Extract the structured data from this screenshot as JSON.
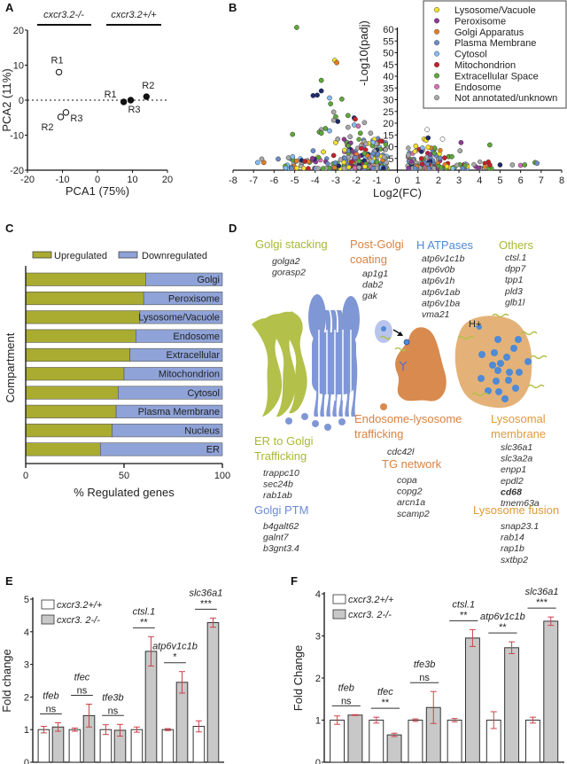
{
  "panels": {
    "A": "A",
    "B": "B",
    "C": "C",
    "D": "D",
    "E": "E",
    "F": "F"
  },
  "colors": {
    "lysosome": "#f2e12a",
    "peroxisome": "#8e3a95",
    "golgi": "#e47f22",
    "plasma_membrane": "#6a8cc8",
    "cytosol": "#86bdef",
    "mitochondrion": "#c8202a",
    "extracellular": "#5fa83a",
    "endosome": "#d56fb1",
    "unknown": "#a8a8a8",
    "upregulated": "#a9ac30",
    "downregulated": "#8fa3d8",
    "golgi_green": "#b3c04a",
    "golgi_blue": "#8097d6",
    "endosome_orange": "#d98a4e",
    "lysosome_tan": "#e4b278",
    "errorbar": "#d0404a",
    "bar_ko": "#c8c8c8"
  },
  "chart_data": [
    {
      "id": "A",
      "type": "scatter",
      "title": "",
      "xlabel": "PCA1 (75%)",
      "ylabel": "PCA2 (11%)",
      "xlim": [
        -20,
        20
      ],
      "ylim": [
        -20,
        20
      ],
      "xticks": [
        "-20",
        "-10",
        "0",
        "10",
        "20"
      ],
      "yticks": [
        "20",
        "10",
        "0",
        "-10",
        "-20"
      ],
      "group_labels": [
        "cxcr3.2-/-",
        "cxcr3.2+/+"
      ],
      "series": [
        {
          "name": "cxcr3.2-/-",
          "filled": false,
          "points": [
            {
              "label": "R1",
              "x": -11,
              "y": 8
            },
            {
              "label": "R2",
              "x": -10.5,
              "y": -4.8
            },
            {
              "label": "R3",
              "x": -9,
              "y": -3.5
            }
          ]
        },
        {
          "name": "cxcr3.2+/+",
          "filled": true,
          "points": [
            {
              "label": "R1",
              "x": 7.5,
              "y": -0.5
            },
            {
              "label": "R3",
              "x": 9.5,
              "y": 0
            },
            {
              "label": "R2",
              "x": 14,
              "y": 1
            }
          ]
        }
      ]
    },
    {
      "id": "B",
      "type": "scatter",
      "title": "",
      "xlabel": "Log2(FC)",
      "ylabel": "-Log10(padj)",
      "xlim": [
        -8,
        8
      ],
      "ylim": [
        0,
        60
      ],
      "xticks": [
        "-8",
        "-7",
        "-6",
        "-5",
        "-4",
        "-3",
        "-2",
        "-1",
        "0",
        "1",
        "2",
        "3",
        "4",
        "5",
        "6",
        "7",
        "8"
      ],
      "yticks": [
        "60",
        "55",
        "50",
        "45",
        "40",
        "35",
        "30",
        "25",
        "20",
        "15",
        "10",
        "5"
      ],
      "legend": [
        {
          "name": "Lysosome/Vacuole",
          "key": "lysosome"
        },
        {
          "name": "Peroxisome",
          "key": "peroxisome"
        },
        {
          "name": "Golgi Apparatus",
          "key": "golgi"
        },
        {
          "name": "Plasma Membrane",
          "key": "plasma_membrane"
        },
        {
          "name": "Cytosol",
          "key": "cytosol"
        },
        {
          "name": "Mitochondrion",
          "key": "mitochondrion"
        },
        {
          "name": "Extracellular Space",
          "key": "extracellular"
        },
        {
          "name": "Endosome",
          "key": "endosome"
        },
        {
          "name": "Not annotated/unknown",
          "key": "unknown"
        }
      ],
      "legend_position": "top-right",
      "highlight_points": [
        {
          "x": -4.9,
          "y": 60,
          "c": "extracellular"
        },
        {
          "x": -3.05,
          "y": 46,
          "c": "lysosome"
        },
        {
          "x": -2.95,
          "y": 45,
          "c": "golgi"
        },
        {
          "x": -3.7,
          "y": 37.5,
          "c": "extracellular"
        },
        {
          "x": -4.1,
          "y": 31,
          "c": "navy"
        },
        {
          "x": -3.9,
          "y": 31.2,
          "c": "navy"
        },
        {
          "x": -3.7,
          "y": 33,
          "c": "navy"
        },
        {
          "x": -3.3,
          "y": 30,
          "c": "cytosol"
        },
        {
          "x": -2.7,
          "y": 29.5,
          "c": "extracellular"
        },
        {
          "x": -3.25,
          "y": 27.5,
          "c": "extracellular"
        },
        {
          "x": -3.1,
          "y": 24,
          "c": "unknown"
        },
        {
          "x": -3.0,
          "y": 22,
          "c": "extracellular"
        },
        {
          "x": -2.9,
          "y": 20,
          "c": "navy"
        },
        {
          "x": -3.1,
          "y": 20.5,
          "c": "unknown"
        },
        {
          "x": -2.4,
          "y": 22.5,
          "c": "extracellular"
        },
        {
          "x": -2.1,
          "y": 21.5,
          "c": "navy"
        },
        {
          "x": -2.05,
          "y": 21,
          "c": "mitochondrion"
        },
        {
          "x": -2.1,
          "y": 18.5,
          "c": "cytosol"
        },
        {
          "x": -1.9,
          "y": 18,
          "c": "endosome"
        },
        {
          "x": -1.6,
          "y": 19.5,
          "c": "unknown"
        },
        {
          "x": -2.4,
          "y": 17.5,
          "c": "unknown"
        },
        {
          "x": -3.5,
          "y": 17,
          "c": "extracellular"
        },
        {
          "x": -3.7,
          "y": 16.5,
          "c": "unknown"
        },
        {
          "x": -3.8,
          "y": 15.5,
          "c": "extracellular"
        },
        {
          "x": -3.3,
          "y": 16,
          "c": "cytosol"
        },
        {
          "x": -3.7,
          "y": 15,
          "c": "extracellular"
        },
        {
          "x": -5.1,
          "y": 14.5,
          "c": "extracellular"
        },
        {
          "x": -3.0,
          "y": 11,
          "c": "lysosome"
        },
        {
          "x": -2.9,
          "y": 12.5,
          "c": "unknown"
        },
        {
          "x": -2.3,
          "y": 13.5,
          "c": "unknown"
        },
        {
          "x": -1.8,
          "y": 15,
          "c": "extracellular"
        },
        {
          "x": -1.3,
          "y": 15,
          "c": "unknown"
        },
        {
          "x": -4.1,
          "y": 7.5,
          "c": "plasma_membrane"
        },
        {
          "x": -3.6,
          "y": 7,
          "c": "lysosome"
        },
        {
          "x": -3.1,
          "y": 5.5,
          "c": "mitochondrion"
        },
        {
          "x": 1.45,
          "y": 16.5,
          "c": "white"
        },
        {
          "x": 1.3,
          "y": 12.5,
          "c": "lysosome"
        },
        {
          "x": 1.4,
          "y": 12,
          "c": "lysosome"
        },
        {
          "x": 1.5,
          "y": 13,
          "c": "navy"
        },
        {
          "x": 2.2,
          "y": 12.5,
          "c": "white"
        },
        {
          "x": 3.1,
          "y": 11,
          "c": "peroxisome"
        },
        {
          "x": 4.5,
          "y": 10,
          "c": "extracellular"
        },
        {
          "x": 3.05,
          "y": 7.5,
          "c": "unknown"
        },
        {
          "x": 0.9,
          "y": 9.5,
          "c": "lysosome"
        },
        {
          "x": 1.5,
          "y": 9,
          "c": "lysosome"
        },
        {
          "x": 1.8,
          "y": 6.5,
          "c": "extracellular"
        },
        {
          "x": 2.5,
          "y": 5,
          "c": "extracellular"
        },
        {
          "x": 2.65,
          "y": 5,
          "c": "extracellular"
        },
        {
          "x": 2.3,
          "y": 4.5,
          "c": "mitochondrion"
        },
        {
          "x": 5.0,
          "y": 1.5,
          "c": "navy"
        },
        {
          "x": 5.6,
          "y": 1.5,
          "c": "unknown"
        },
        {
          "x": 6.0,
          "y": 1.3,
          "c": "endosome"
        },
        {
          "x": 6.2,
          "y": 1.5,
          "c": "extracellular"
        },
        {
          "x": 6.7,
          "y": 2.5,
          "c": "extracellular"
        },
        {
          "x": 6.8,
          "y": 2.2,
          "c": "plasma_membrane"
        },
        {
          "x": 4.5,
          "y": 1.5,
          "c": "mitochondrion"
        },
        {
          "x": -6.8,
          "y": 2.5,
          "c": "cytosol"
        },
        {
          "x": -6.5,
          "y": 2.5,
          "c": "golgi"
        },
        {
          "x": -6.6,
          "y": 4,
          "c": "unknown"
        },
        {
          "x": -5.8,
          "y": 4,
          "c": "plasma_membrane"
        },
        {
          "x": -5.3,
          "y": 4.5,
          "c": "unknown"
        },
        {
          "x": -5.1,
          "y": 5,
          "c": "cytosol"
        },
        {
          "x": -4.5,
          "y": 3,
          "c": "mitochondrion"
        }
      ]
    },
    {
      "id": "C",
      "type": "bar",
      "orientation": "horizontal",
      "stacked": true,
      "xlabel": "% Regulated genes",
      "ylabel": "Compartment",
      "xlim": [
        0,
        100
      ],
      "xticks": [
        "0",
        "50",
        "100"
      ],
      "legend": [
        "Upregulated",
        "Downregulated"
      ],
      "legend_position": "top",
      "categories": [
        "Golgi",
        "Peroxisome",
        "Lysosome/Vacuole",
        "Endosome",
        "Extracellular",
        "Mitochondrion",
        "Cytosol",
        "Plasma Membrane",
        "Nucleus",
        "ER"
      ],
      "series": [
        {
          "name": "Upregulated",
          "values": [
            61,
            60,
            58,
            56,
            53,
            50,
            47,
            46,
            44,
            38
          ]
        },
        {
          "name": "Downregulated",
          "values": [
            39,
            40,
            42,
            44,
            47,
            50,
            53,
            54,
            56,
            62
          ]
        }
      ]
    },
    {
      "id": "E",
      "type": "bar",
      "ylabel": "Fold change",
      "ylim": [
        0,
        5
      ],
      "yticks": [
        "5",
        "4",
        "3",
        "2",
        "1",
        "0"
      ],
      "legend": [
        "cxcr3.2+/+",
        "cxcr3. 2-/-"
      ],
      "legend_position": "top-left",
      "categories": [
        "tfeb",
        "tfec",
        "tfe3b",
        "ctsl.1",
        "atp6v1c1b",
        "slc36a1"
      ],
      "significance": [
        "ns",
        "ns",
        "ns",
        "**",
        "*",
        "***"
      ],
      "series": [
        {
          "name": "cxcr3.2+/+",
          "values": [
            1.0,
            1.0,
            1.0,
            1.0,
            1.0,
            1.1
          ],
          "errors": [
            0.1,
            0.05,
            0.15,
            0.08,
            0.03,
            0.17
          ]
        },
        {
          "name": "cxcr3.2-/-",
          "values": [
            1.08,
            1.43,
            0.98,
            3.4,
            2.45,
            4.28
          ],
          "errors": [
            0.13,
            0.35,
            0.18,
            0.45,
            0.33,
            0.14
          ]
        }
      ]
    },
    {
      "id": "F",
      "type": "bar",
      "ylabel": "Fold Change",
      "ylim": [
        0,
        4
      ],
      "yticks": [
        "4",
        "3",
        "2",
        "1",
        "0"
      ],
      "legend": [
        "cxcr3.2+/+",
        "cxcr3. 2-/-"
      ],
      "legend_position": "top-left",
      "categories": [
        "tfeb",
        "tfec",
        "tfe3b",
        "ctsl.1",
        "atp6v1c1b",
        "slc36a1"
      ],
      "significance": [
        "ns",
        "**",
        "ns",
        "**",
        "**",
        "***"
      ],
      "series": [
        {
          "name": "cxcr3.2+/+",
          "values": [
            1.0,
            1.0,
            1.0,
            1.0,
            1.0,
            1.0
          ],
          "errors": [
            0.1,
            0.07,
            0.03,
            0.04,
            0.2,
            0.07
          ]
        },
        {
          "name": "cxcr3.2-/-",
          "values": [
            1.12,
            0.65,
            1.3,
            2.95,
            2.72,
            3.35
          ],
          "errors": [
            0.01,
            0.04,
            0.38,
            0.2,
            0.14,
            0.1
          ]
        }
      ]
    }
  ],
  "diagram": {
    "groups": [
      {
        "id": "golgi_stacking",
        "title": [
          "Golgi stacking"
        ],
        "color": "#a9b832",
        "genes": [
          "golga2",
          "gorasp2"
        ]
      },
      {
        "id": "post_golgi",
        "title": [
          "Post-Golgi",
          "coating"
        ],
        "color": "#d9823f",
        "genes": [
          "ap1g1",
          "dab2",
          "gak"
        ]
      },
      {
        "id": "h_atpases",
        "title": [
          "H ATPases"
        ],
        "color": "#4f8ad6",
        "genes": [
          "atp6v1c1b",
          "atp6v0b",
          "atp6v1h",
          "atp6v1ab",
          "atp6v1ba",
          "vma21"
        ]
      },
      {
        "id": "others",
        "title": [
          "Others"
        ],
        "color": "#a9b832",
        "genes": [
          "ctsl.1",
          "dpp7",
          "tpp1",
          "pld3",
          "glb1l"
        ]
      },
      {
        "id": "er_golgi",
        "title": [
          "ER to Golgi",
          "Trafficking"
        ],
        "color": "#a9b832",
        "genes": [
          "trappc10",
          "sec24b",
          "rab1ab"
        ]
      },
      {
        "id": "golgi_ptm",
        "title": [
          "Golgi PTM"
        ],
        "color": "#6a8ad6",
        "genes": [
          "b4galt62",
          "galnt7",
          "b3gnt3.4"
        ]
      },
      {
        "id": "endo_lyso",
        "title": [
          "Endosome-lysosome",
          "trafficking"
        ],
        "color": "#d9823f",
        "genes": [
          "cdc42l"
        ]
      },
      {
        "id": "tg_network",
        "title": [
          "TG network"
        ],
        "color": "#d9823f",
        "genes": [
          "copa",
          "copg2",
          "arcn1a",
          "scamp2"
        ]
      },
      {
        "id": "lyso_membrane",
        "title": [
          "Lysosomal",
          "membrane"
        ],
        "color": "#e09a3a",
        "genes": [
          "slc36a1",
          "slc3a2a",
          "enpp1",
          "epdl2",
          "cd68",
          "tmem63a"
        ]
      },
      {
        "id": "lyso_fusion",
        "title": [
          "Lysosome fusion"
        ],
        "color": "#e09a3a",
        "genes": [
          "snap23.1",
          "rab14",
          "rap1b",
          "sxtbp2"
        ]
      }
    ],
    "proton_label": "H+"
  }
}
